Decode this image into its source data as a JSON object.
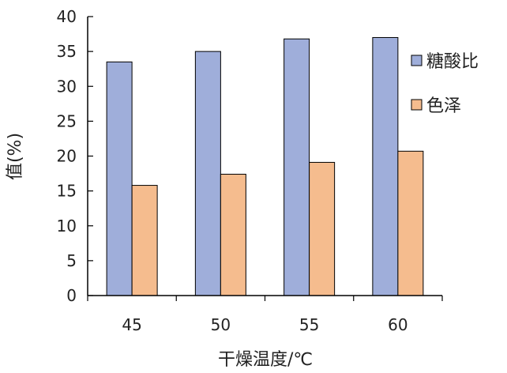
{
  "chart_data": {
    "type": "bar",
    "title": "",
    "xlabel": "干燥温度/℃",
    "ylabel": "值(%)",
    "categories": [
      "45",
      "50",
      "55",
      "60"
    ],
    "ylim": [
      0,
      40
    ],
    "yticks": [
      0,
      5,
      10,
      15,
      20,
      25,
      30,
      35,
      40
    ],
    "grid": false,
    "legend_position": "right",
    "series": [
      {
        "name": "糖酸比",
        "color": "#9FAEDA",
        "values": [
          33.5,
          35.0,
          36.8,
          37.0
        ]
      },
      {
        "name": "色泽",
        "color": "#F5BC8E",
        "values": [
          15.8,
          17.4,
          19.1,
          20.7
        ]
      }
    ]
  }
}
